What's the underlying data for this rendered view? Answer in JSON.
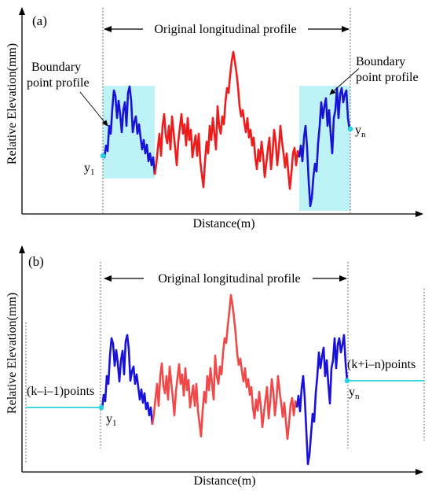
{
  "colors": {
    "boundary": "#1a12d6",
    "original": "#ee1c1c",
    "highlight": "#bdf3f7",
    "point": "#27d3df",
    "axis": "#000000"
  },
  "panel_a": {
    "label": "(a)",
    "profile_label": "Original longitudinal profile",
    "boundary_left": [
      "Boundary",
      "point profile"
    ],
    "boundary_right": [
      "Boundary",
      "point profile"
    ],
    "y1_base": "y",
    "y1_sub": "1",
    "yn_base": "y",
    "yn_sub": "n",
    "xlabel": "Distance(m)",
    "ylabel": "Relative Elevation(mm)"
  },
  "panel_b": {
    "label": "(b)",
    "profile_label": "Original longitudinal profile",
    "left_points": "(k–i–1)points",
    "right_points": "(k+i–n)points",
    "y1_base": "y",
    "y1_sub": "1",
    "yn_base": "y",
    "yn_sub": "n",
    "xlabel": "Distance(m)",
    "ylabel": "Relative Elevation(mm)"
  }
}
